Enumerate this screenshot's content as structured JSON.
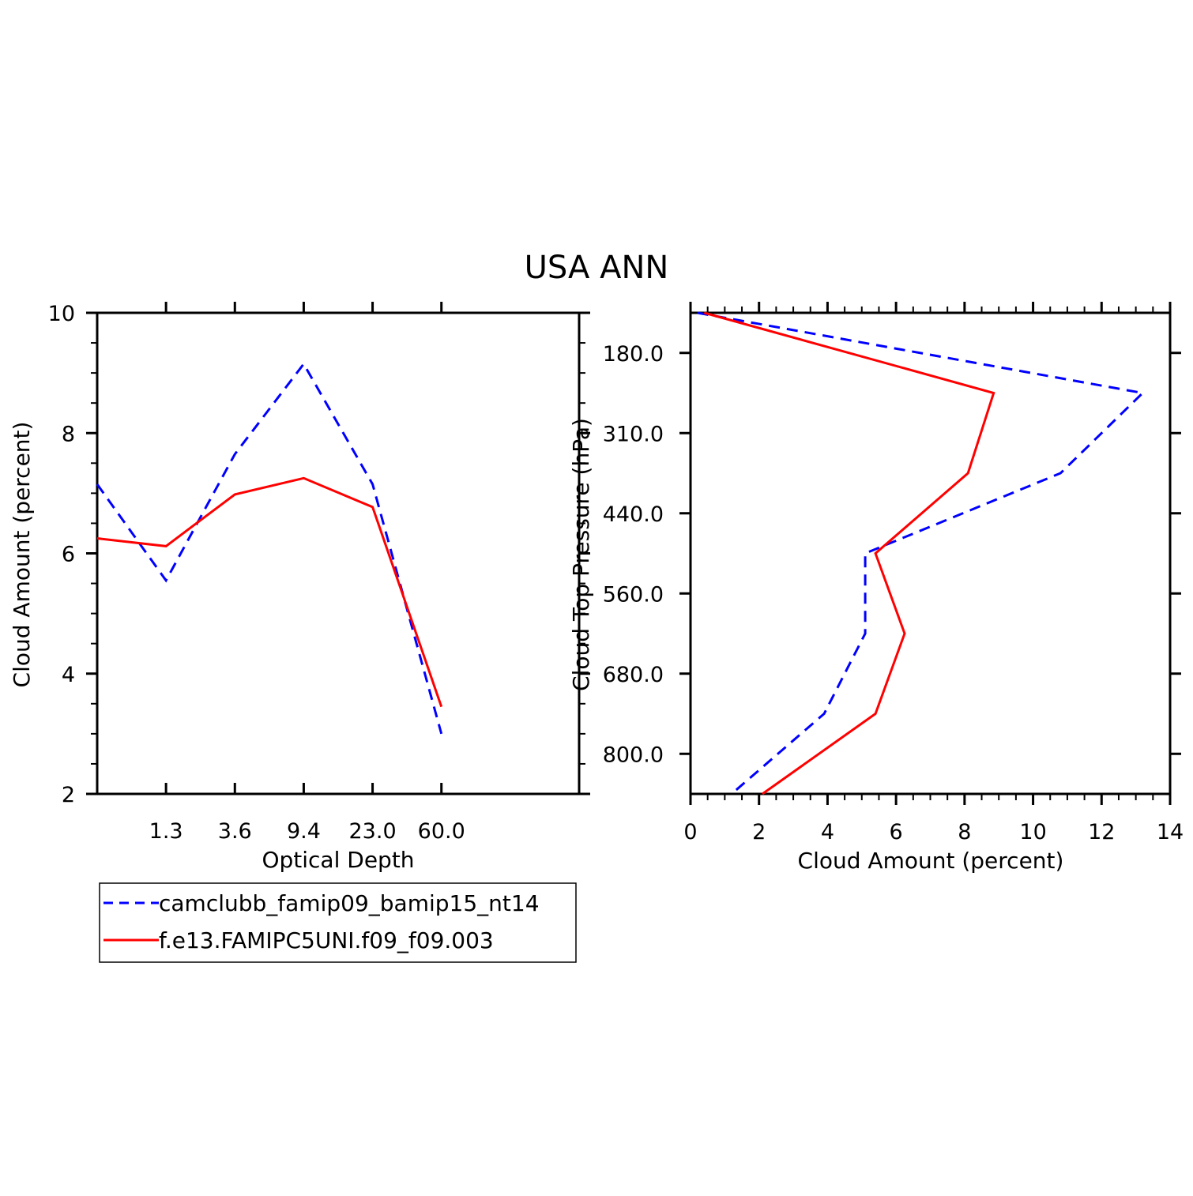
{
  "title": "USA ANN",
  "colors": {
    "series_dashed": "#0000ff",
    "series_solid": "#ff0000",
    "axis": "#000000"
  },
  "legend": {
    "entries": [
      {
        "name": "camclubb_famip09_bamip15_nt14",
        "style": "dashed",
        "color": "#0000ff"
      },
      {
        "name": "f.e13.FAMIPC5UNI.f09_f09.003",
        "style": "solid",
        "color": "#ff0000"
      }
    ]
  },
  "chart_data": [
    {
      "type": "line",
      "panel": "left",
      "xlabel": "Optical Depth",
      "ylabel": "Cloud Amount (percent)",
      "x_tick_labels": [
        "1.3",
        "3.6",
        "9.4",
        "23.0",
        "60.0"
      ],
      "y_ticks": [
        "2",
        "4",
        "6",
        "8",
        "10"
      ],
      "ylim": [
        2,
        10
      ],
      "x_bins": 7,
      "series": [
        {
          "name": "camclubb_famip09_bamip15_nt14",
          "values": [
            7.15,
            5.55,
            7.65,
            9.15,
            7.15,
            3.0
          ]
        },
        {
          "name": "f.e13.FAMIPC5UNI.f09_f09.003",
          "values": [
            6.25,
            6.12,
            6.98,
            7.25,
            6.77,
            3.45
          ]
        }
      ]
    },
    {
      "type": "line",
      "panel": "right",
      "xlabel": "Cloud Amount (percent)",
      "ylabel": "Cloud Top Pressure (hPa)",
      "x_ticks": [
        "0",
        "2",
        "4",
        "6",
        "8",
        "10",
        "12",
        "14"
      ],
      "xlim": [
        0,
        14
      ],
      "y_tick_labels": [
        "180.0",
        "310.0",
        "440.0",
        "560.0",
        "680.0",
        "800.0"
      ],
      "y_bins": 7,
      "series": [
        {
          "name": "camclubb_famip09_bamip15_nt14",
          "values": [
            0.2,
            13.2,
            10.8,
            5.1,
            5.1,
            3.9,
            1.2
          ]
        },
        {
          "name": "f.e13.FAMIPC5UNI.f09_f09.003",
          "values": [
            0.4,
            8.85,
            8.1,
            5.4,
            6.25,
            5.4,
            2.1
          ]
        }
      ]
    }
  ]
}
